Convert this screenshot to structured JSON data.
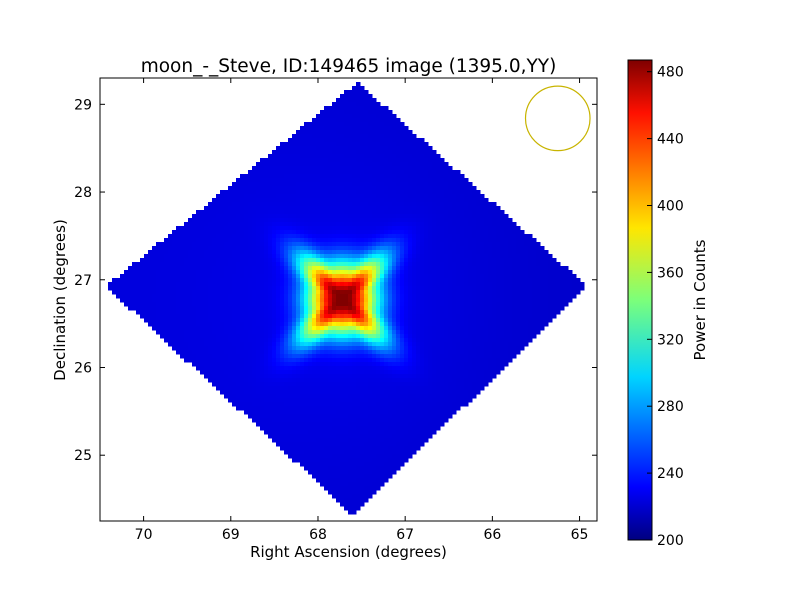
{
  "chart_data": {
    "type": "heatmap",
    "title": "moon_-_Steve, ID:149465 image (1395.0,YY)",
    "xlabel": "Right Ascension (degrees)",
    "ylabel": "Declination (degrees)",
    "xlim": [
      70.5,
      64.8
    ],
    "ylim": [
      24.25,
      29.3
    ],
    "x_ticks": [
      70,
      69,
      68,
      67,
      66,
      65
    ],
    "y_ticks": [
      25,
      26,
      27,
      28,
      29
    ],
    "grid": false,
    "colormap": "jet",
    "colorbar": {
      "label": "Power in Counts",
      "min": 200,
      "max": 487,
      "ticks": [
        200,
        240,
        280,
        320,
        360,
        400,
        440,
        480
      ]
    },
    "image": {
      "shape": "diamond",
      "center": [
        67.72,
        26.78
      ],
      "corners": {
        "top": [
          67.55,
          29.25
        ],
        "right": [
          64.92,
          26.93
        ],
        "bottom": [
          67.6,
          24.32
        ],
        "left": [
          70.43,
          26.93
        ]
      },
      "background_level": 228,
      "peak": {
        "ra": 67.72,
        "dec": 26.78,
        "value": 487
      }
    },
    "beam_marker": {
      "shape": "circle",
      "center": [
        65.25,
        28.84
      ],
      "radius_deg": 0.37,
      "color": "#c8b400"
    }
  }
}
